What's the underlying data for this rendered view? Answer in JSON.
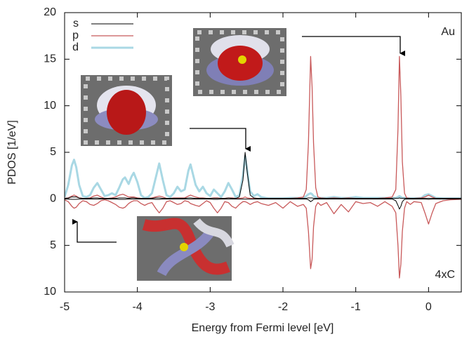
{
  "chart_data": {
    "type": "line",
    "xlabel": "Energy from Fermi level [eV]",
    "ylabel": "PDOS [1/eV]",
    "annotations": [
      "Au",
      "4xC"
    ],
    "xlim": [
      -5,
      0.45
    ],
    "ylim": [
      -10,
      20
    ],
    "xticks": [
      -5,
      -4,
      -3,
      -2,
      -1,
      0
    ],
    "yticks": [
      {
        "value": -10,
        "label": "10"
      },
      {
        "value": -5,
        "label": "5"
      },
      0,
      5,
      10,
      15,
      20
    ],
    "x": [
      -5,
      -4.95,
      -4.9,
      -4.87,
      -4.84,
      -4.8,
      -4.75,
      -4.7,
      -4.65,
      -4.6,
      -4.55,
      -4.5,
      -4.45,
      -4.4,
      -4.35,
      -4.3,
      -4.25,
      -4.2,
      -4.17,
      -4.12,
      -4.08,
      -4.05,
      -4.0,
      -3.95,
      -3.9,
      -3.85,
      -3.8,
      -3.75,
      -3.7,
      -3.65,
      -3.6,
      -3.55,
      -3.5,
      -3.45,
      -3.4,
      -3.35,
      -3.3,
      -3.27,
      -3.2,
      -3.15,
      -3.1,
      -3.05,
      -3.0,
      -2.95,
      -2.9,
      -2.85,
      -2.8,
      -2.75,
      -2.7,
      -2.65,
      -2.6,
      -2.55,
      -2.52,
      -2.49,
      -2.45,
      -2.4,
      -2.35,
      -2.3,
      -2.2,
      -2.1,
      -2.0,
      -1.9,
      -1.8,
      -1.72,
      -1.68,
      -1.65,
      -1.62,
      -1.6,
      -1.58,
      -1.55,
      -1.52,
      -1.48,
      -1.4,
      -1.3,
      -1.2,
      -1.1,
      -1.0,
      -0.9,
      -0.8,
      -0.7,
      -0.6,
      -0.5,
      -0.45,
      -0.42,
      -0.4,
      -0.38,
      -0.36,
      -0.33,
      -0.3,
      -0.25,
      -0.2,
      -0.1,
      -0.05,
      0.0,
      0.05,
      0.1,
      0.2,
      0.3,
      0.45
    ],
    "series": [
      {
        "name": "s",
        "color": "#000000",
        "width": 1,
        "values": [
          0.05,
          0.1,
          0.2,
          0.2,
          0.2,
          0.1,
          0.05,
          0.05,
          0.05,
          0.1,
          0.1,
          0.05,
          0.05,
          0.05,
          0.05,
          0.05,
          0.1,
          0.1,
          0.1,
          0.05,
          0.1,
          0.1,
          0.05,
          0.05,
          0.05,
          0.05,
          0.05,
          0.1,
          0.1,
          0.05,
          0.05,
          0.05,
          0.05,
          0.05,
          0.05,
          0.05,
          0.1,
          0.1,
          0.05,
          0.05,
          0.05,
          0.05,
          0.05,
          0.05,
          0.05,
          0.05,
          0.05,
          0.1,
          0.05,
          0.05,
          0.2,
          2.0,
          5.0,
          2.8,
          0.4,
          0.1,
          0.05,
          0.05,
          0.05,
          0.05,
          0.05,
          0.05,
          0.05,
          0.05,
          0.05,
          0.1,
          0.1,
          0.1,
          0.05,
          0.05,
          0.05,
          0.05,
          0.05,
          0.05,
          0.05,
          0.05,
          0.05,
          0.05,
          0.05,
          0.05,
          0.05,
          0.05,
          0.05,
          0.05,
          0.1,
          0.05,
          0.05,
          0.05,
          0.05,
          0.05,
          0.05,
          0.05,
          0.05,
          0.05,
          0.05,
          0.05,
          0.05,
          0.05,
          0.05
        ],
        "values_down": [
          -0.02,
          -0.02,
          -0.05,
          -0.05,
          -0.05,
          -0.02,
          -0.02,
          -0.02,
          -0.02,
          -0.02,
          -0.02,
          -0.02,
          -0.02,
          -0.02,
          -0.02,
          -0.02,
          -0.05,
          -0.05,
          -0.05,
          -0.02,
          -0.02,
          -0.02,
          -0.02,
          -0.02,
          -0.02,
          -0.02,
          -0.02,
          -0.05,
          -0.05,
          -0.02,
          -0.02,
          -0.02,
          -0.02,
          -0.02,
          -0.02,
          -0.02,
          -0.02,
          -0.02,
          -0.02,
          -0.02,
          -0.02,
          -0.02,
          -0.02,
          -0.05,
          -0.05,
          -0.02,
          -0.02,
          -0.02,
          -0.02,
          -0.02,
          -0.02,
          -0.02,
          -0.02,
          -0.02,
          -0.02,
          -0.02,
          -0.02,
          -0.02,
          -0.02,
          -0.02,
          -0.02,
          -0.02,
          -0.02,
          -0.02,
          -0.02,
          -0.1,
          -0.3,
          -0.2,
          -0.05,
          -0.02,
          -0.02,
          -0.02,
          -0.02,
          -0.02,
          -0.02,
          -0.02,
          -0.02,
          -0.02,
          -0.02,
          -0.02,
          -0.02,
          -0.02,
          -0.2,
          -0.7,
          -1.1,
          -0.8,
          -0.3,
          -0.05,
          -0.02,
          -0.02,
          -0.02,
          -0.02,
          -0.02,
          -0.05,
          -0.02,
          -0.02,
          -0.02,
          -0.02,
          -0.02
        ]
      },
      {
        "name": "p",
        "color": "#c8595a",
        "width": 1.3,
        "values": [
          0.05,
          0.1,
          0.3,
          0.4,
          0.3,
          0.1,
          0.05,
          0.05,
          0.1,
          0.3,
          0.4,
          0.2,
          0.05,
          0.05,
          0.1,
          0.2,
          0.4,
          0.5,
          0.4,
          0.2,
          0.2,
          0.2,
          0.1,
          0.05,
          0.05,
          0.05,
          0.1,
          0.2,
          0.3,
          0.2,
          0.05,
          0.05,
          0.1,
          0.1,
          0.1,
          0.1,
          0.3,
          0.4,
          0.2,
          0.1,
          0.1,
          0.05,
          0.05,
          0.1,
          0.1,
          0.05,
          0.05,
          0.1,
          0.1,
          0.05,
          0.05,
          0.1,
          0.2,
          0.1,
          0.05,
          0.05,
          0.05,
          0.05,
          0.05,
          0.05,
          0.05,
          0.05,
          0.1,
          0.2,
          1.0,
          6.0,
          15.3,
          12.0,
          6.0,
          1.2,
          0.2,
          0.1,
          0.05,
          0.1,
          0.05,
          0.1,
          0.05,
          0.05,
          0.05,
          0.05,
          0.1,
          0.2,
          1.0,
          7.5,
          15.3,
          11.0,
          4.0,
          0.6,
          0.1,
          0.05,
          0.05,
          0.1,
          0.2,
          0.4,
          0.2,
          0.05,
          0.05,
          0.05,
          0.05
        ],
        "values_down": [
          -0.1,
          -0.3,
          -0.8,
          -1.0,
          -0.9,
          -0.5,
          -0.2,
          -0.3,
          -0.6,
          -0.7,
          -0.5,
          -0.2,
          -0.1,
          -0.2,
          -0.4,
          -0.6,
          -0.9,
          -1.0,
          -0.9,
          -0.5,
          -0.3,
          -0.2,
          -0.2,
          -0.5,
          -0.7,
          -0.5,
          -0.4,
          -1.0,
          -1.5,
          -1.0,
          -0.3,
          -0.2,
          -0.4,
          -0.6,
          -0.5,
          -0.2,
          -0.3,
          -0.5,
          -0.7,
          -0.8,
          -0.5,
          -0.2,
          -0.4,
          -1.0,
          -1.5,
          -1.0,
          -0.3,
          -0.4,
          -0.8,
          -1.0,
          -0.6,
          -0.3,
          -0.3,
          -0.4,
          -0.6,
          -0.4,
          -0.3,
          -0.5,
          -0.7,
          -0.4,
          -1.0,
          -0.3,
          -0.8,
          -0.6,
          -1.0,
          -3.5,
          -7.5,
          -6.5,
          -3.0,
          -0.8,
          -0.4,
          -0.7,
          -0.4,
          -1.6,
          -0.6,
          -1.4,
          -0.3,
          -0.5,
          -0.4,
          -0.8,
          -0.3,
          -0.8,
          -1.5,
          -5.0,
          -8.5,
          -7.0,
          -3.5,
          -1.0,
          -0.3,
          -0.6,
          -0.3,
          -0.4,
          -1.5,
          -2.7,
          -1.5,
          -0.5,
          -0.2,
          -0.1,
          -0.05
        ]
      },
      {
        "name": "d",
        "color": "#a9d8e4",
        "width": 3,
        "values": [
          0.2,
          1.5,
          3.6,
          4.2,
          3.4,
          1.5,
          0.3,
          0.2,
          0.4,
          1.2,
          1.7,
          1.0,
          0.3,
          0.4,
          0.6,
          0.4,
          1.2,
          2.1,
          2.3,
          1.6,
          2.4,
          2.8,
          1.8,
          0.4,
          0.1,
          0.2,
          0.6,
          2.2,
          3.8,
          2.0,
          0.4,
          0.2,
          0.6,
          1.3,
          0.8,
          1.0,
          3.0,
          3.7,
          1.5,
          0.8,
          1.3,
          0.6,
          0.3,
          1.0,
          0.6,
          0.2,
          0.8,
          1.7,
          1.0,
          0.2,
          0.4,
          2.5,
          4.6,
          3.0,
          0.8,
          0.3,
          0.5,
          0.2,
          0.05,
          0.05,
          0.05,
          0.1,
          0.1,
          0.1,
          0.3,
          0.5,
          0.6,
          0.5,
          0.3,
          0.2,
          0.1,
          0.1,
          0.1,
          0.2,
          0.1,
          0.1,
          0.2,
          0.1,
          0.1,
          0.1,
          0.1,
          0.1,
          0.1,
          0.2,
          0.3,
          0.2,
          0.1,
          0.1,
          0.05,
          0.05,
          0.05,
          0.1,
          0.4,
          0.5,
          0.3,
          0.1,
          0.05,
          0.05,
          0.05
        ]
      }
    ]
  }
}
